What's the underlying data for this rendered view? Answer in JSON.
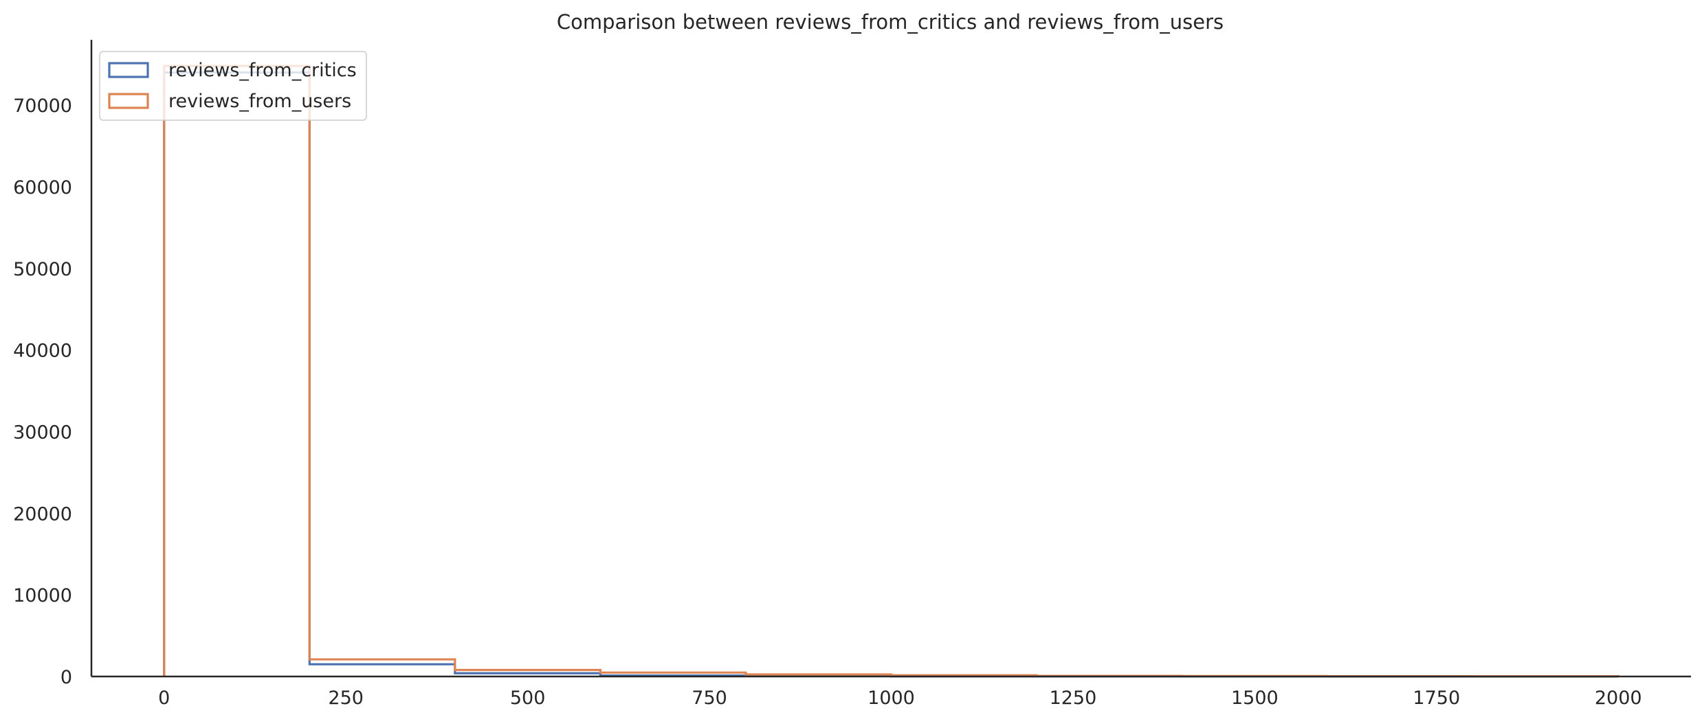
{
  "chart_data": {
    "type": "histogram",
    "title": "Comparison between reviews_from_critics and reviews_from_users",
    "xlabel": "",
    "ylabel": "",
    "xlim": [
      -100,
      2100
    ],
    "ylim": [
      0,
      78000
    ],
    "x_ticks": [
      0,
      250,
      500,
      750,
      1000,
      1250,
      1500,
      1750,
      2000
    ],
    "y_ticks": [
      0,
      10000,
      20000,
      30000,
      40000,
      50000,
      60000,
      70000
    ],
    "bin_edges": [
      0,
      200,
      400,
      600,
      800,
      1000,
      1200,
      1400,
      1600,
      1800,
      2000
    ],
    "grid": false,
    "legend_position": "upper-left",
    "series": [
      {
        "name": "reviews_from_critics",
        "color": "#4c72b0",
        "values": [
          74000,
          1500,
          400,
          120,
          50,
          20,
          10,
          5,
          3,
          2
        ]
      },
      {
        "name": "reviews_from_users",
        "color": "#dd8452",
        "values": [
          74800,
          2100,
          800,
          480,
          250,
          150,
          80,
          50,
          30,
          20
        ]
      }
    ]
  }
}
